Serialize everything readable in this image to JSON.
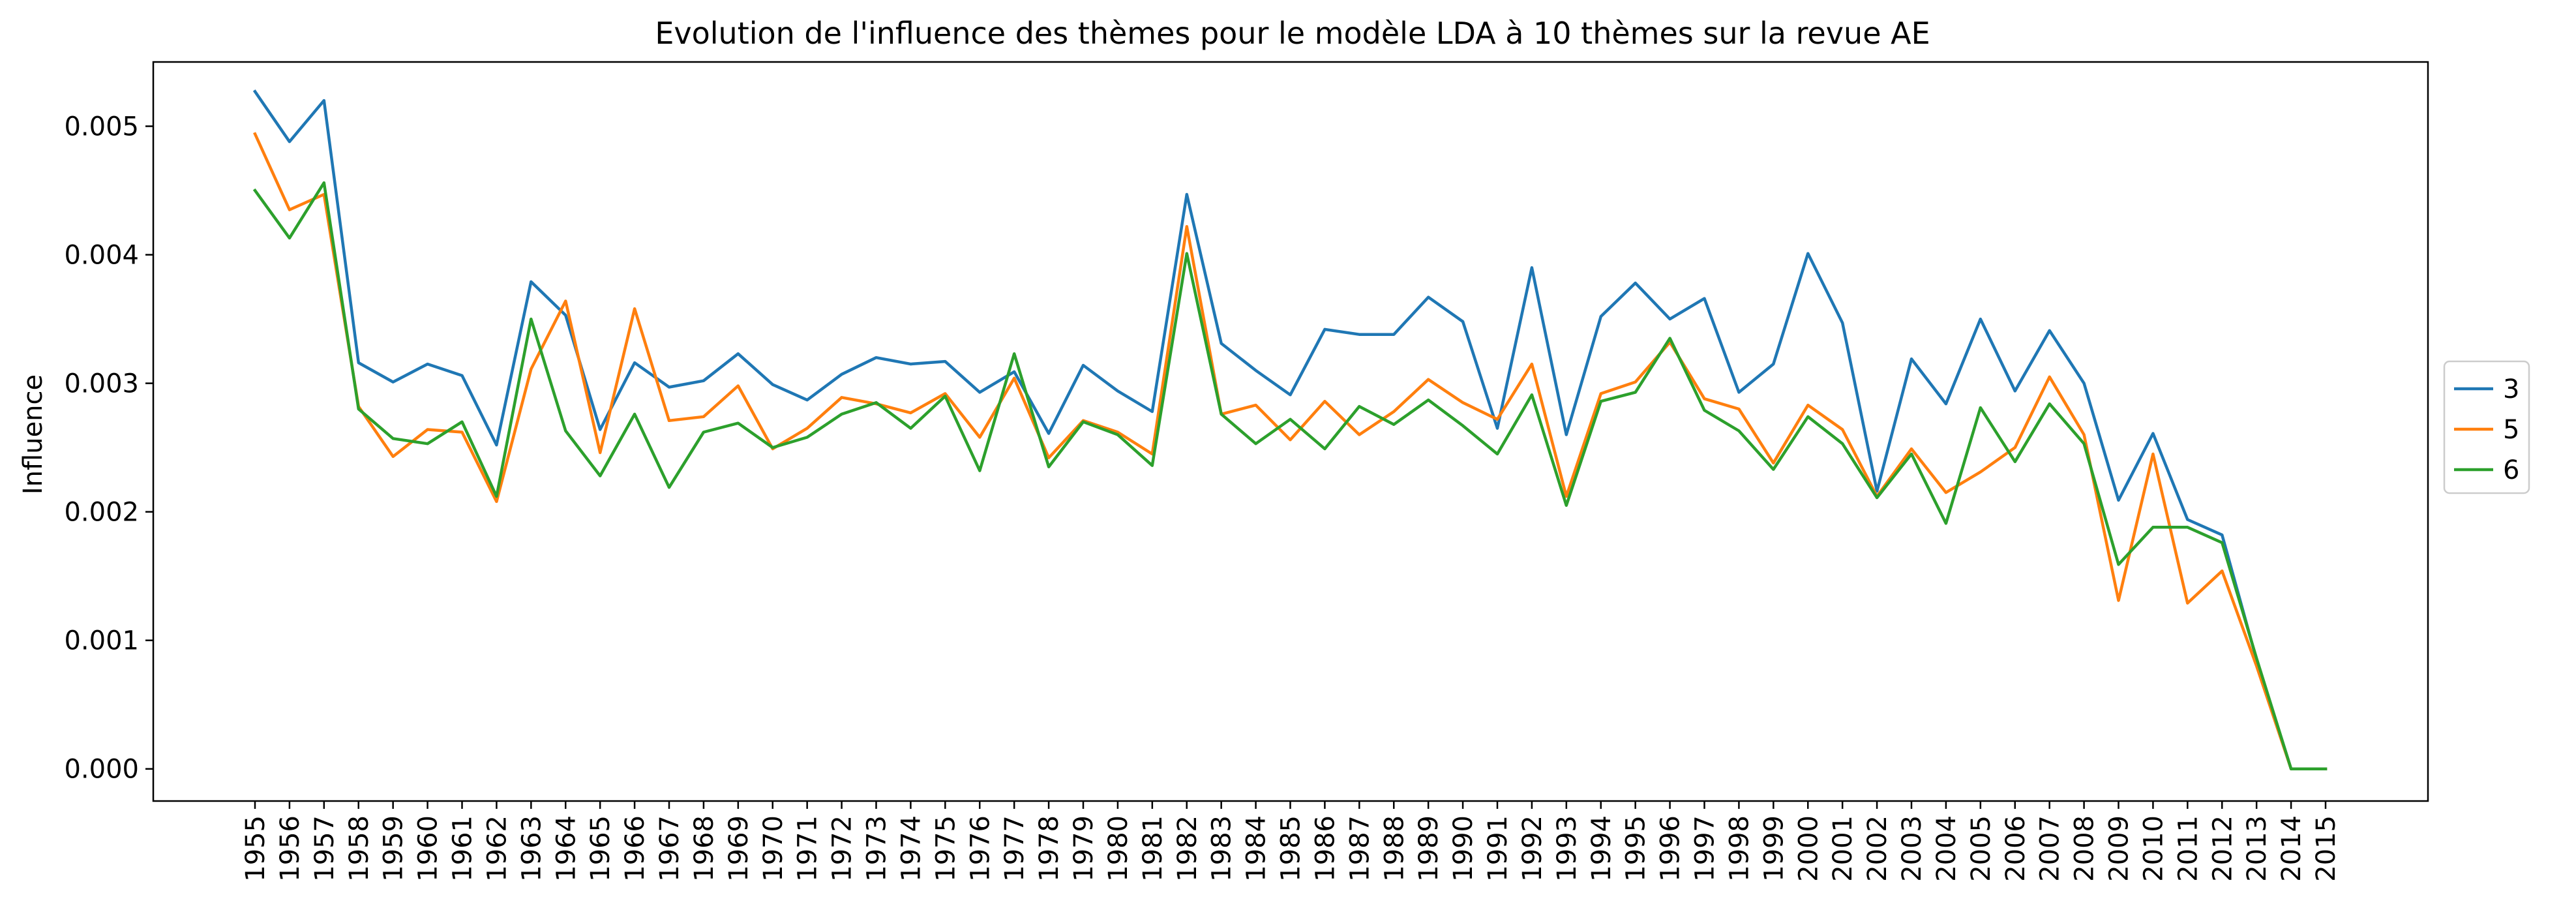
{
  "chart_data": {
    "type": "line",
    "title": "Evolution de l'influence des thèmes pour le modèle LDA à 10 thèmes sur la revue AE",
    "xlabel": "",
    "ylabel": "Influence",
    "ylim": [
      -0.00025,
      0.0055
    ],
    "yticks": [
      "0.000",
      "0.001",
      "0.002",
      "0.003",
      "0.004",
      "0.005"
    ],
    "ytick_values": [
      0,
      0.001,
      0.002,
      0.003,
      0.004,
      0.005
    ],
    "legend_position": "right",
    "grid": false,
    "x": [
      "1955",
      "1956",
      "1957",
      "1958",
      "1959",
      "1960",
      "1961",
      "1962",
      "1963",
      "1964",
      "1965",
      "1966",
      "1967",
      "1968",
      "1969",
      "1970",
      "1971",
      "1972",
      "1973",
      "1974",
      "1975",
      "1976",
      "1977",
      "1978",
      "1979",
      "1980",
      "1981",
      "1982",
      "1983",
      "1984",
      "1985",
      "1986",
      "1987",
      "1988",
      "1989",
      "1990",
      "1991",
      "1992",
      "1993",
      "1994",
      "1995",
      "1996",
      "1997",
      "1998",
      "1999",
      "2000",
      "2001",
      "2002",
      "2003",
      "2004",
      "2005",
      "2006",
      "2007",
      "2008",
      "2009",
      "2010",
      "2011",
      "2012",
      "2013",
      "2014",
      "2015"
    ],
    "series": [
      {
        "name": "3",
        "color": "#1f77b4",
        "values": [
          0.00527,
          0.00488,
          0.0052,
          0.00316,
          0.00301,
          0.00315,
          0.00306,
          0.00252,
          0.00379,
          0.00353,
          0.00264,
          0.00316,
          0.00297,
          0.00302,
          0.00323,
          0.00299,
          0.00287,
          0.00307,
          0.0032,
          0.00315,
          0.00317,
          0.00293,
          0.00309,
          0.00261,
          0.00314,
          0.00294,
          0.00278,
          0.00447,
          0.00331,
          0.0031,
          0.00291,
          0.00342,
          0.00338,
          0.00338,
          0.00367,
          0.00348,
          0.00265,
          0.0039,
          0.0026,
          0.00352,
          0.00378,
          0.0035,
          0.00366,
          0.00293,
          0.00315,
          0.00401,
          0.00347,
          0.00216,
          0.00319,
          0.00284,
          0.0035,
          0.00294,
          0.00341,
          0.003,
          0.00209,
          0.00261,
          0.00194,
          0.00182,
          0.00085,
          0.0,
          0.0
        ]
      },
      {
        "name": "5",
        "color": "#ff7f0e",
        "values": [
          0.00494,
          0.00435,
          0.00447,
          0.00282,
          0.00243,
          0.00264,
          0.00262,
          0.00208,
          0.00311,
          0.00364,
          0.00246,
          0.00358,
          0.00271,
          0.00274,
          0.00298,
          0.00249,
          0.00265,
          0.00289,
          0.00284,
          0.00277,
          0.00292,
          0.00258,
          0.00304,
          0.00242,
          0.00271,
          0.00262,
          0.00245,
          0.00422,
          0.00276,
          0.00283,
          0.00256,
          0.00286,
          0.0026,
          0.00278,
          0.00303,
          0.00285,
          0.00272,
          0.00315,
          0.00212,
          0.00292,
          0.00301,
          0.00332,
          0.00288,
          0.0028,
          0.00238,
          0.00283,
          0.00264,
          0.00212,
          0.00249,
          0.00215,
          0.00231,
          0.0025,
          0.00305,
          0.0026,
          0.00131,
          0.00245,
          0.00129,
          0.00154,
          0.0008,
          0.0,
          0.0
        ]
      },
      {
        "name": "6",
        "color": "#2ca02c",
        "values": [
          0.0045,
          0.00413,
          0.00456,
          0.0028,
          0.00257,
          0.00253,
          0.0027,
          0.00212,
          0.0035,
          0.00263,
          0.00228,
          0.00276,
          0.00219,
          0.00262,
          0.00269,
          0.0025,
          0.00258,
          0.00276,
          0.00285,
          0.00265,
          0.0029,
          0.00232,
          0.00323,
          0.00235,
          0.0027,
          0.0026,
          0.00236,
          0.00401,
          0.00276,
          0.00253,
          0.00272,
          0.00249,
          0.00282,
          0.00268,
          0.00287,
          0.00267,
          0.00245,
          0.00291,
          0.00205,
          0.00286,
          0.00293,
          0.00335,
          0.00279,
          0.00263,
          0.00233,
          0.00274,
          0.00253,
          0.00211,
          0.00245,
          0.00191,
          0.00281,
          0.00239,
          0.00284,
          0.00253,
          0.00159,
          0.00188,
          0.00188,
          0.00176,
          0.00086,
          0.0,
          0.0
        ]
      }
    ]
  }
}
